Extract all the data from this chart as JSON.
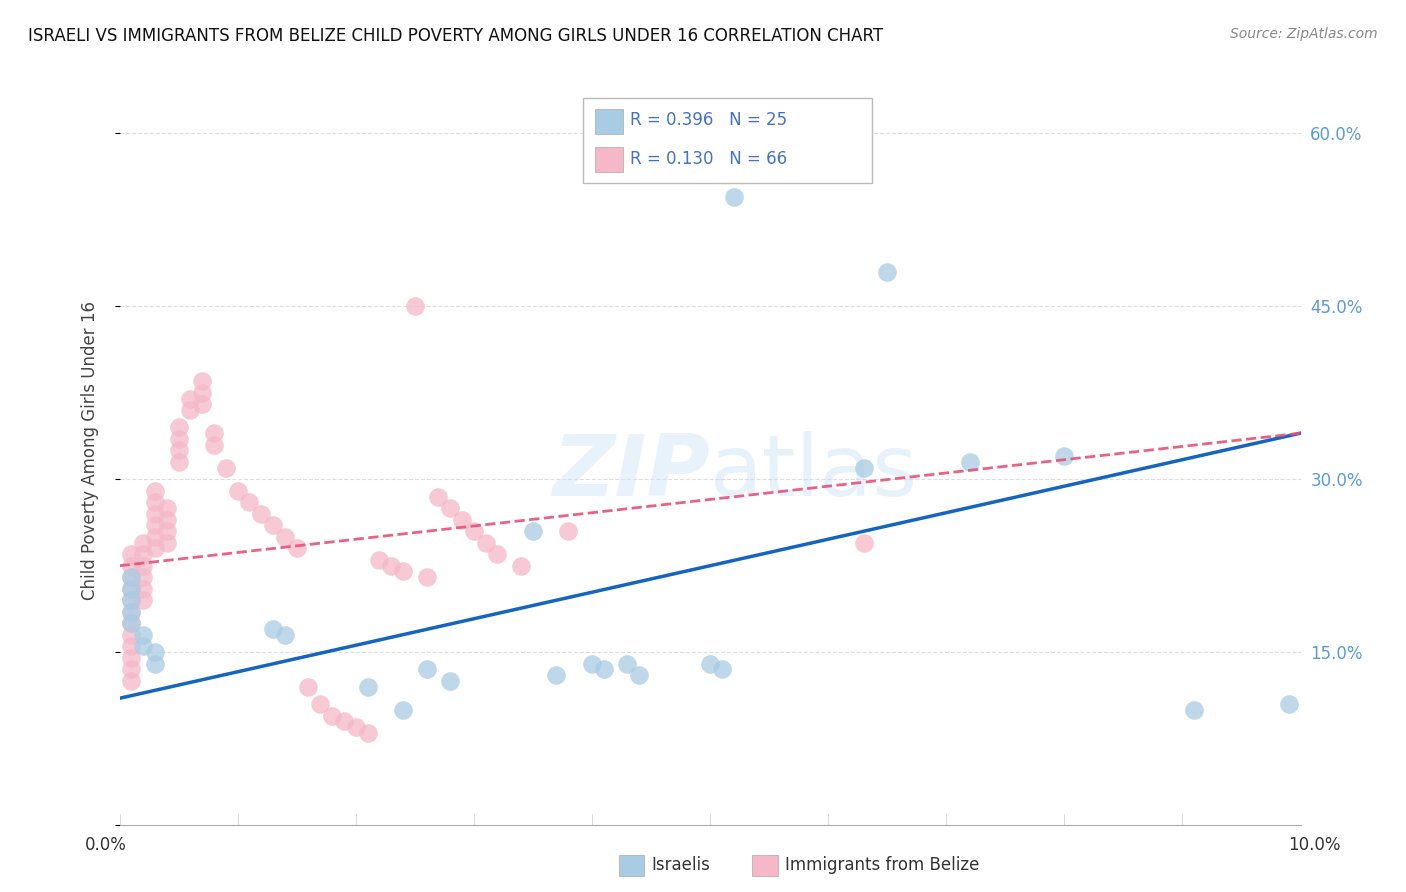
{
  "title": "ISRAELI VS IMMIGRANTS FROM BELIZE CHILD POVERTY AMONG GIRLS UNDER 16 CORRELATION CHART",
  "source": "Source: ZipAtlas.com",
  "ylabel": "Child Poverty Among Girls Under 16",
  "watermark": "ZIPatlas",
  "xlim": [
    0.0,
    0.1
  ],
  "ylim": [
    0.0,
    0.65
  ],
  "yticks": [
    0.0,
    0.15,
    0.3,
    0.45,
    0.6
  ],
  "yticklabels": [
    "",
    "15.0%",
    "30.0%",
    "45.0%",
    "60.0%"
  ],
  "color_blue": "#a8cce4",
  "color_pink": "#f4b8c8",
  "line_blue": "#1565c0",
  "line_pink": "#e8507a",
  "legend1_label": "Israelis",
  "legend2_label": "Immigrants from Belize",
  "israelis_x": [
    0.001,
    0.001,
    0.001,
    0.001,
    0.001,
    0.002,
    0.002,
    0.003,
    0.003,
    0.013,
    0.014,
    0.021,
    0.024,
    0.026,
    0.028,
    0.035,
    0.037,
    0.04,
    0.041,
    0.043,
    0.044,
    0.05,
    0.051,
    0.052,
    0.063,
    0.065,
    0.072,
    0.08,
    0.091,
    0.099
  ],
  "israelis_y": [
    0.215,
    0.205,
    0.195,
    0.185,
    0.175,
    0.165,
    0.155,
    0.15,
    0.14,
    0.17,
    0.165,
    0.12,
    0.1,
    0.135,
    0.125,
    0.255,
    0.13,
    0.14,
    0.135,
    0.14,
    0.13,
    0.14,
    0.135,
    0.545,
    0.31,
    0.48,
    0.315,
    0.32,
    0.1,
    0.105
  ],
  "belize_x": [
    0.001,
    0.001,
    0.001,
    0.001,
    0.001,
    0.001,
    0.001,
    0.001,
    0.001,
    0.001,
    0.001,
    0.001,
    0.002,
    0.002,
    0.002,
    0.002,
    0.002,
    0.002,
    0.003,
    0.003,
    0.003,
    0.003,
    0.003,
    0.003,
    0.004,
    0.004,
    0.004,
    0.004,
    0.005,
    0.005,
    0.005,
    0.005,
    0.006,
    0.006,
    0.007,
    0.007,
    0.007,
    0.008,
    0.008,
    0.009,
    0.01,
    0.011,
    0.012,
    0.013,
    0.014,
    0.015,
    0.016,
    0.017,
    0.018,
    0.019,
    0.02,
    0.021,
    0.022,
    0.023,
    0.024,
    0.025,
    0.026,
    0.027,
    0.028,
    0.029,
    0.03,
    0.031,
    0.032,
    0.034,
    0.038,
    0.063
  ],
  "belize_y": [
    0.235,
    0.225,
    0.215,
    0.205,
    0.195,
    0.185,
    0.175,
    0.165,
    0.155,
    0.145,
    0.135,
    0.125,
    0.245,
    0.235,
    0.225,
    0.215,
    0.205,
    0.195,
    0.29,
    0.28,
    0.27,
    0.26,
    0.25,
    0.24,
    0.275,
    0.265,
    0.255,
    0.245,
    0.345,
    0.335,
    0.325,
    0.315,
    0.37,
    0.36,
    0.385,
    0.375,
    0.365,
    0.34,
    0.33,
    0.31,
    0.29,
    0.28,
    0.27,
    0.26,
    0.25,
    0.24,
    0.12,
    0.105,
    0.095,
    0.09,
    0.085,
    0.08,
    0.23,
    0.225,
    0.22,
    0.45,
    0.215,
    0.285,
    0.275,
    0.265,
    0.255,
    0.245,
    0.235,
    0.225,
    0.255,
    0.245
  ]
}
